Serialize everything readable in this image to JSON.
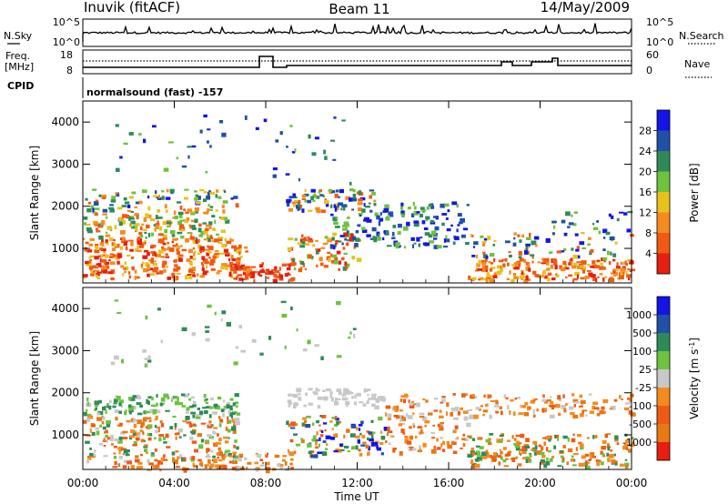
{
  "header": {
    "station": "Inuvik (fitACF)",
    "beam": "Beam 11",
    "date": "14/May/2009"
  },
  "summary_panel": {
    "nsky_label": "N.Sky",
    "nsky_ticks": [
      "10^5",
      "10^0"
    ],
    "nsearch_label": "N.Search",
    "nsearch_ticks": [
      "10^5",
      "10^0"
    ],
    "freq_label": "Freq.",
    "freq_unit": "[MHz]",
    "freq_ticks": [
      "18",
      "8"
    ],
    "nave_label": "Nave",
    "nave_ticks": [
      "60",
      "0"
    ],
    "cpid_label": "CPID",
    "cpid_text": "normalsound (fast) -157"
  },
  "chart_data": [
    {
      "type": "heatmap",
      "name": "power-panel",
      "xlabel": "",
      "ylabel": "Slant Range [km]",
      "x_ticks": [
        "00:00",
        "04:00",
        "08:00",
        "12:00",
        "16:00",
        "20:00",
        "00:00"
      ],
      "y_ticks": [
        1000,
        2000,
        3000,
        4000
      ],
      "ylim": [
        180,
        4500
      ],
      "colorbar": {
        "label": "Power [dB]",
        "ticks": [
          "28",
          "24",
          "20",
          "16",
          "12",
          "8",
          "4"
        ],
        "colors": [
          "#1414e6",
          "#2050a8",
          "#2e8b57",
          "#6dc23e",
          "#e8c21c",
          "#f58b1e",
          "#f05a14",
          "#e81e10"
        ]
      }
    },
    {
      "type": "heatmap",
      "name": "velocity-panel",
      "xlabel": "Time UT",
      "ylabel": "Slant Range [km]",
      "x_ticks": [
        "00:00",
        "04:00",
        "08:00",
        "12:00",
        "16:00",
        "20:00",
        "00:00"
      ],
      "y_ticks": [
        1000,
        2000,
        3000,
        4000
      ],
      "ylim": [
        180,
        4500
      ],
      "colorbar": {
        "label": "Velocity [m s",
        "label_sup": "-1",
        "label_end": "]",
        "ticks": [
          "1000",
          "500",
          "100",
          "25",
          "-25",
          "-100",
          "-500",
          "-1000"
        ],
        "colors": [
          "#1414e6",
          "#2050a8",
          "#2e8b57",
          "#6dc23e",
          "#c8c8c8",
          "#f58b1e",
          "#f05a14",
          "#e87814",
          "#e81e10"
        ]
      }
    }
  ]
}
